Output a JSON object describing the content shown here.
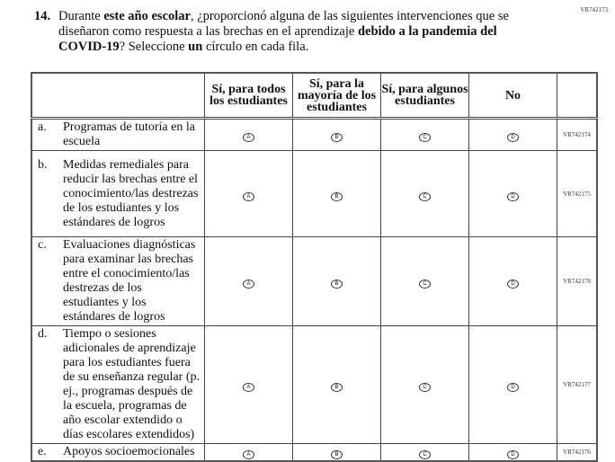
{
  "question_id": "VR742173",
  "question": {
    "number": "14.",
    "parts": [
      {
        "text": "Durante ",
        "bold": false
      },
      {
        "text": "este año escolar",
        "bold": true
      },
      {
        "text": ", ¿proporcionó alguna de las siguientes intervenciones que se diseñaron como respuesta a las brechas en el aprendizaje ",
        "bold": false
      },
      {
        "text": "debido a la pandemia del COVID-19",
        "bold": true
      },
      {
        "text": "? Seleccione ",
        "bold": false
      },
      {
        "text": "un",
        "bold": true
      },
      {
        "text": " círculo en cada fila.",
        "bold": false
      }
    ]
  },
  "columns": [
    "Sí, para todos los estudiantes",
    "Sí, para la mayoría de los estudiantes",
    "Sí, para algunos estudiantes",
    "No"
  ],
  "option_letters": [
    "A",
    "B",
    "C",
    "D"
  ],
  "rows": [
    {
      "label": "a.",
      "text": "Programas de tutoría en la escuela",
      "code": "VR742174"
    },
    {
      "label": "b.",
      "text": "Medidas remediales para reducir las brechas entre el conocimiento/las destrezas de los estudiantes y los estándares de logros",
      "code": "VR742175"
    },
    {
      "label": "c.",
      "text": "Evaluaciones diagnósticas para examinar las brechas entre el conocimiento/las destrezas de los estudiantes y los estándares de logros",
      "code": "VR742178"
    },
    {
      "label": "d.",
      "text": "Tiempo o sesiones adicionales de aprendizaje para los estudiantes fuera de su enseñanza regular (p. ej., programas después de la escuela, programas de año escolar extendido o días escolares extendidos)",
      "code": "VR742177"
    },
    {
      "label": "e.",
      "text": "Apoyos socioemocionales",
      "code": "VR742176"
    }
  ]
}
